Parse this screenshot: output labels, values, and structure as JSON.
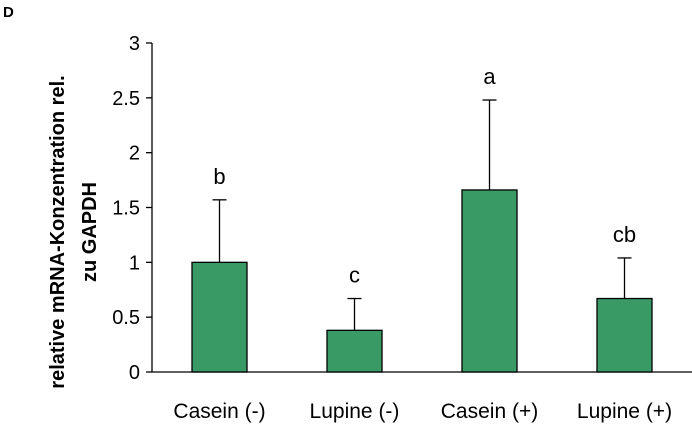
{
  "chart_data": {
    "type": "bar",
    "panel_label": "D",
    "categories": [
      "Casein (-)",
      "Lupine (-)",
      "Casein (+)",
      "Lupine (+)"
    ],
    "values": [
      1.0,
      0.38,
      1.66,
      0.67
    ],
    "error_upper": [
      0.57,
      0.29,
      0.82,
      0.37
    ],
    "significance_labels": [
      "b",
      "c",
      "a",
      "cb"
    ],
    "ylabel_lines": [
      "relative mRNA-Konzentration rel.",
      "zu GAPDH"
    ],
    "ylim": [
      0,
      3
    ],
    "yticks": [
      0,
      0.5,
      1,
      1.5,
      2,
      2.5,
      3
    ],
    "ytick_labels": [
      "0",
      "0.5",
      "1",
      "1.5",
      "2",
      "2.5",
      "3"
    ],
    "grid": false,
    "colors": {
      "bar_fill": "#3a9a66",
      "bar_stroke": "#000000"
    }
  }
}
